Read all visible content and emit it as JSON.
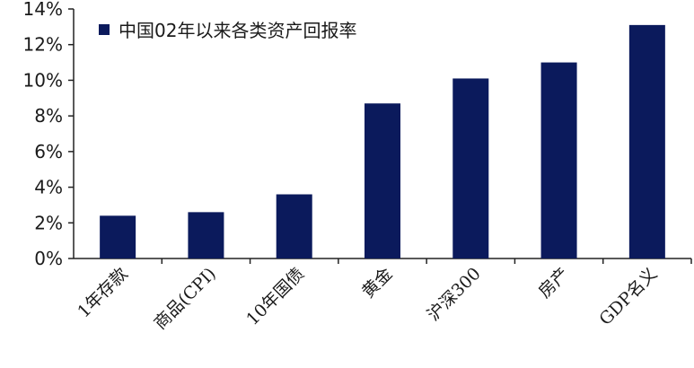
{
  "chart_data": {
    "type": "bar",
    "categories": [
      "1年存款",
      "商品(CPI)",
      "10年国债",
      "黄金",
      "沪深300",
      "房产",
      "GDP名义"
    ],
    "series": [
      {
        "name": "中国02年以来各类资产回报率",
        "values": [
          2.4,
          2.6,
          3.6,
          8.7,
          10.1,
          11.0,
          13.1
        ],
        "color": "#0b1a5c"
      }
    ],
    "ylim": [
      0,
      14
    ],
    "yticks": [
      "0%",
      "2%",
      "4%",
      "6%",
      "8%",
      "10%",
      "12%",
      "14%"
    ],
    "ytick_values": [
      0,
      2,
      4,
      6,
      8,
      10,
      12,
      14
    ],
    "grid": false,
    "legend_position": "top-left",
    "title": "",
    "xlabel": "",
    "ylabel": ""
  }
}
